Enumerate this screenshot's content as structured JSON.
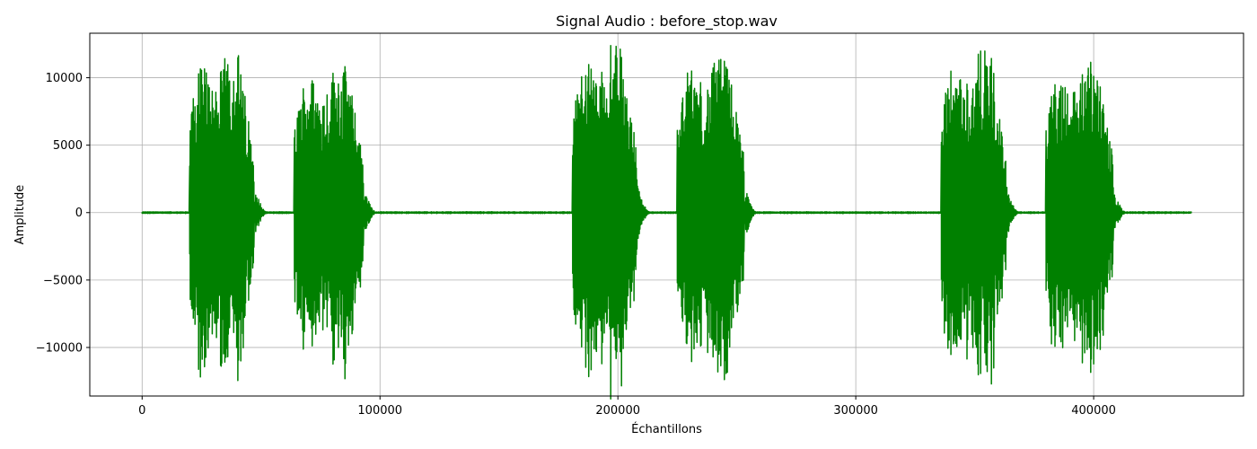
{
  "chart_data": {
    "type": "line",
    "title": "Signal Audio : before_stop.wav",
    "xlabel": "Échantillons",
    "ylabel": "Amplitude",
    "xlim": [
      -22000,
      463000
    ],
    "ylim": [
      -13600,
      13300
    ],
    "x_ticks": [
      0,
      100000,
      200000,
      300000,
      400000
    ],
    "x_tick_labels": [
      "0",
      "100000",
      "200000",
      "300000",
      "400000"
    ],
    "y_ticks": [
      -10000,
      -5000,
      0,
      5000,
      10000
    ],
    "y_tick_labels": [
      "−10000",
      "−5000",
      "0",
      "5000",
      "10000"
    ],
    "grid": true,
    "series": [
      {
        "color": "#008000",
        "x_range": [
          0,
          441000
        ],
        "noise_floor": 40,
        "bursts": [
          {
            "start": 20000,
            "end": 47000,
            "peak": 12000
          },
          {
            "start": 64000,
            "end": 93000,
            "peak": 11000
          },
          {
            "start": 181000,
            "end": 208000,
            "peak": 12400
          },
          {
            "start": 225000,
            "end": 253000,
            "peak": 11500
          },
          {
            "start": 336000,
            "end": 363000,
            "peak": 12000
          },
          {
            "start": 380000,
            "end": 408000,
            "peak": 11200
          }
        ]
      }
    ]
  }
}
